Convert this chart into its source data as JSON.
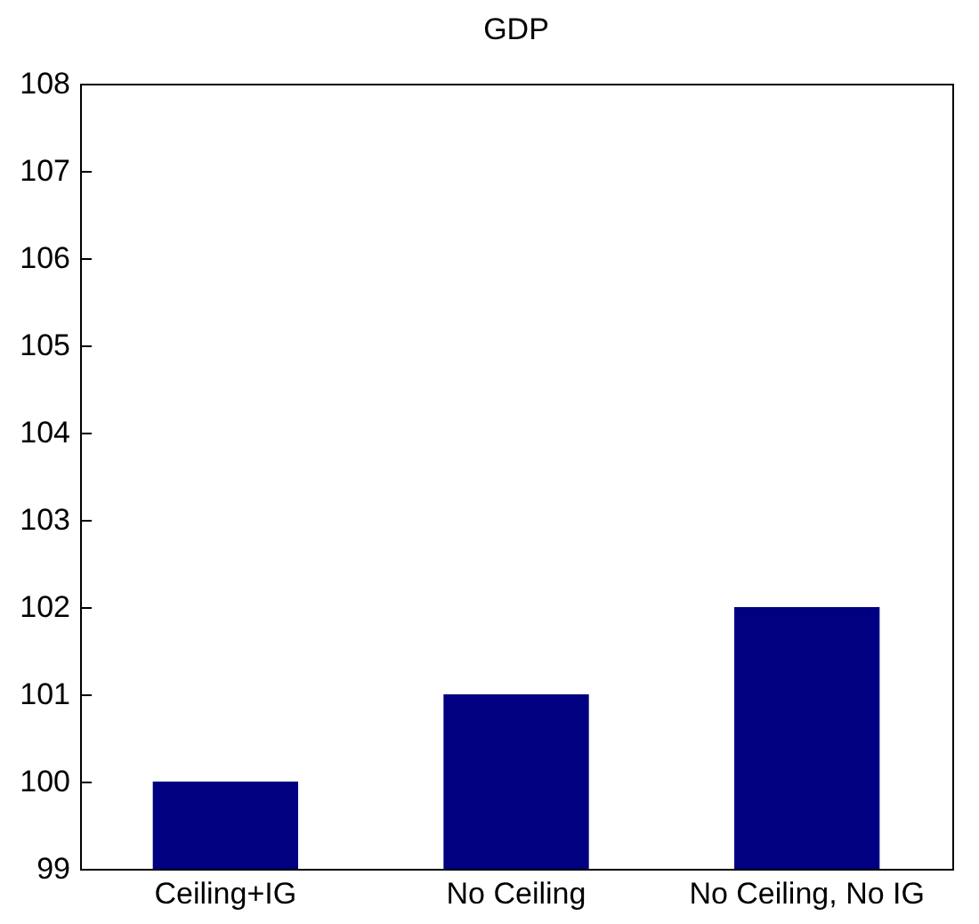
{
  "chart_data": {
    "type": "bar",
    "title": "GDP",
    "categories": [
      "Ceiling+IG",
      "No Ceiling",
      "No Ceiling, No IG"
    ],
    "values": [
      100,
      101,
      102
    ],
    "color": "#000080",
    "ylim": [
      99,
      108
    ],
    "yticks": [
      99,
      100,
      101,
      102,
      103,
      104,
      105,
      106,
      107,
      108
    ],
    "grid": false
  }
}
